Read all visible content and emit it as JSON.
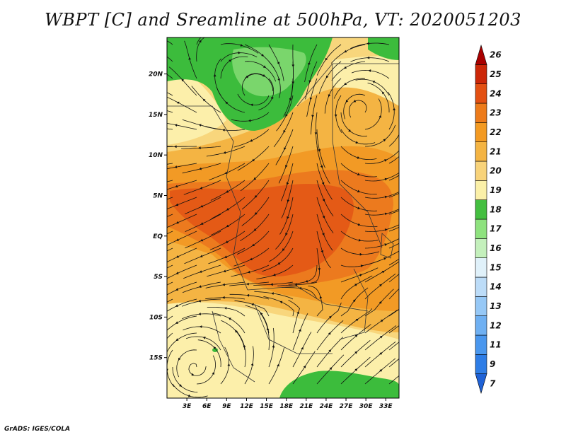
{
  "title": "WBPT [C] and Sreamline at 500hPa, VT: 2020051203",
  "credit": "GrADS: IGES/COLA",
  "map": {
    "lat_labels": [
      "20N",
      "15N",
      "10N",
      "5N",
      "EQ",
      "5S",
      "10S",
      "15S"
    ],
    "lon_labels": [
      "3E",
      "6E",
      "9E",
      "12E",
      "15E",
      "18E",
      "21E",
      "24E",
      "27E",
      "30E",
      "33E"
    ],
    "lat_range": [
      -20,
      24.5
    ],
    "lon_range": [
      0,
      35
    ]
  },
  "colorbar": {
    "levels": [
      "7",
      "9",
      "11",
      "12",
      "13",
      "14",
      "15",
      "16",
      "17",
      "18",
      "19",
      "20",
      "21",
      "22",
      "23",
      "24",
      "25",
      "26"
    ],
    "colors": [
      "#1f62d6",
      "#2e7de6",
      "#4a97ee",
      "#6fb0f2",
      "#96c8f6",
      "#bcdcf8",
      "#e0f1fa",
      "#c4f0bc",
      "#8ee27e",
      "#44bf40",
      "#fbf0a8",
      "#f8d37a",
      "#f4b443",
      "#f39a22",
      "#ed7b1a",
      "#e35012",
      "#cc2708",
      "#a90000"
    ]
  },
  "colors": {
    "green_dark": "#3cbc3c",
    "green_light": "#7ad66c",
    "yellow_pale": "#fcefaa",
    "yellow": "#f8d67c",
    "orange_light": "#f4b443",
    "orange": "#f29a25",
    "orange_dark": "#ec7a1e",
    "red_orange": "#e45a16",
    "streamline": "#111111"
  }
}
